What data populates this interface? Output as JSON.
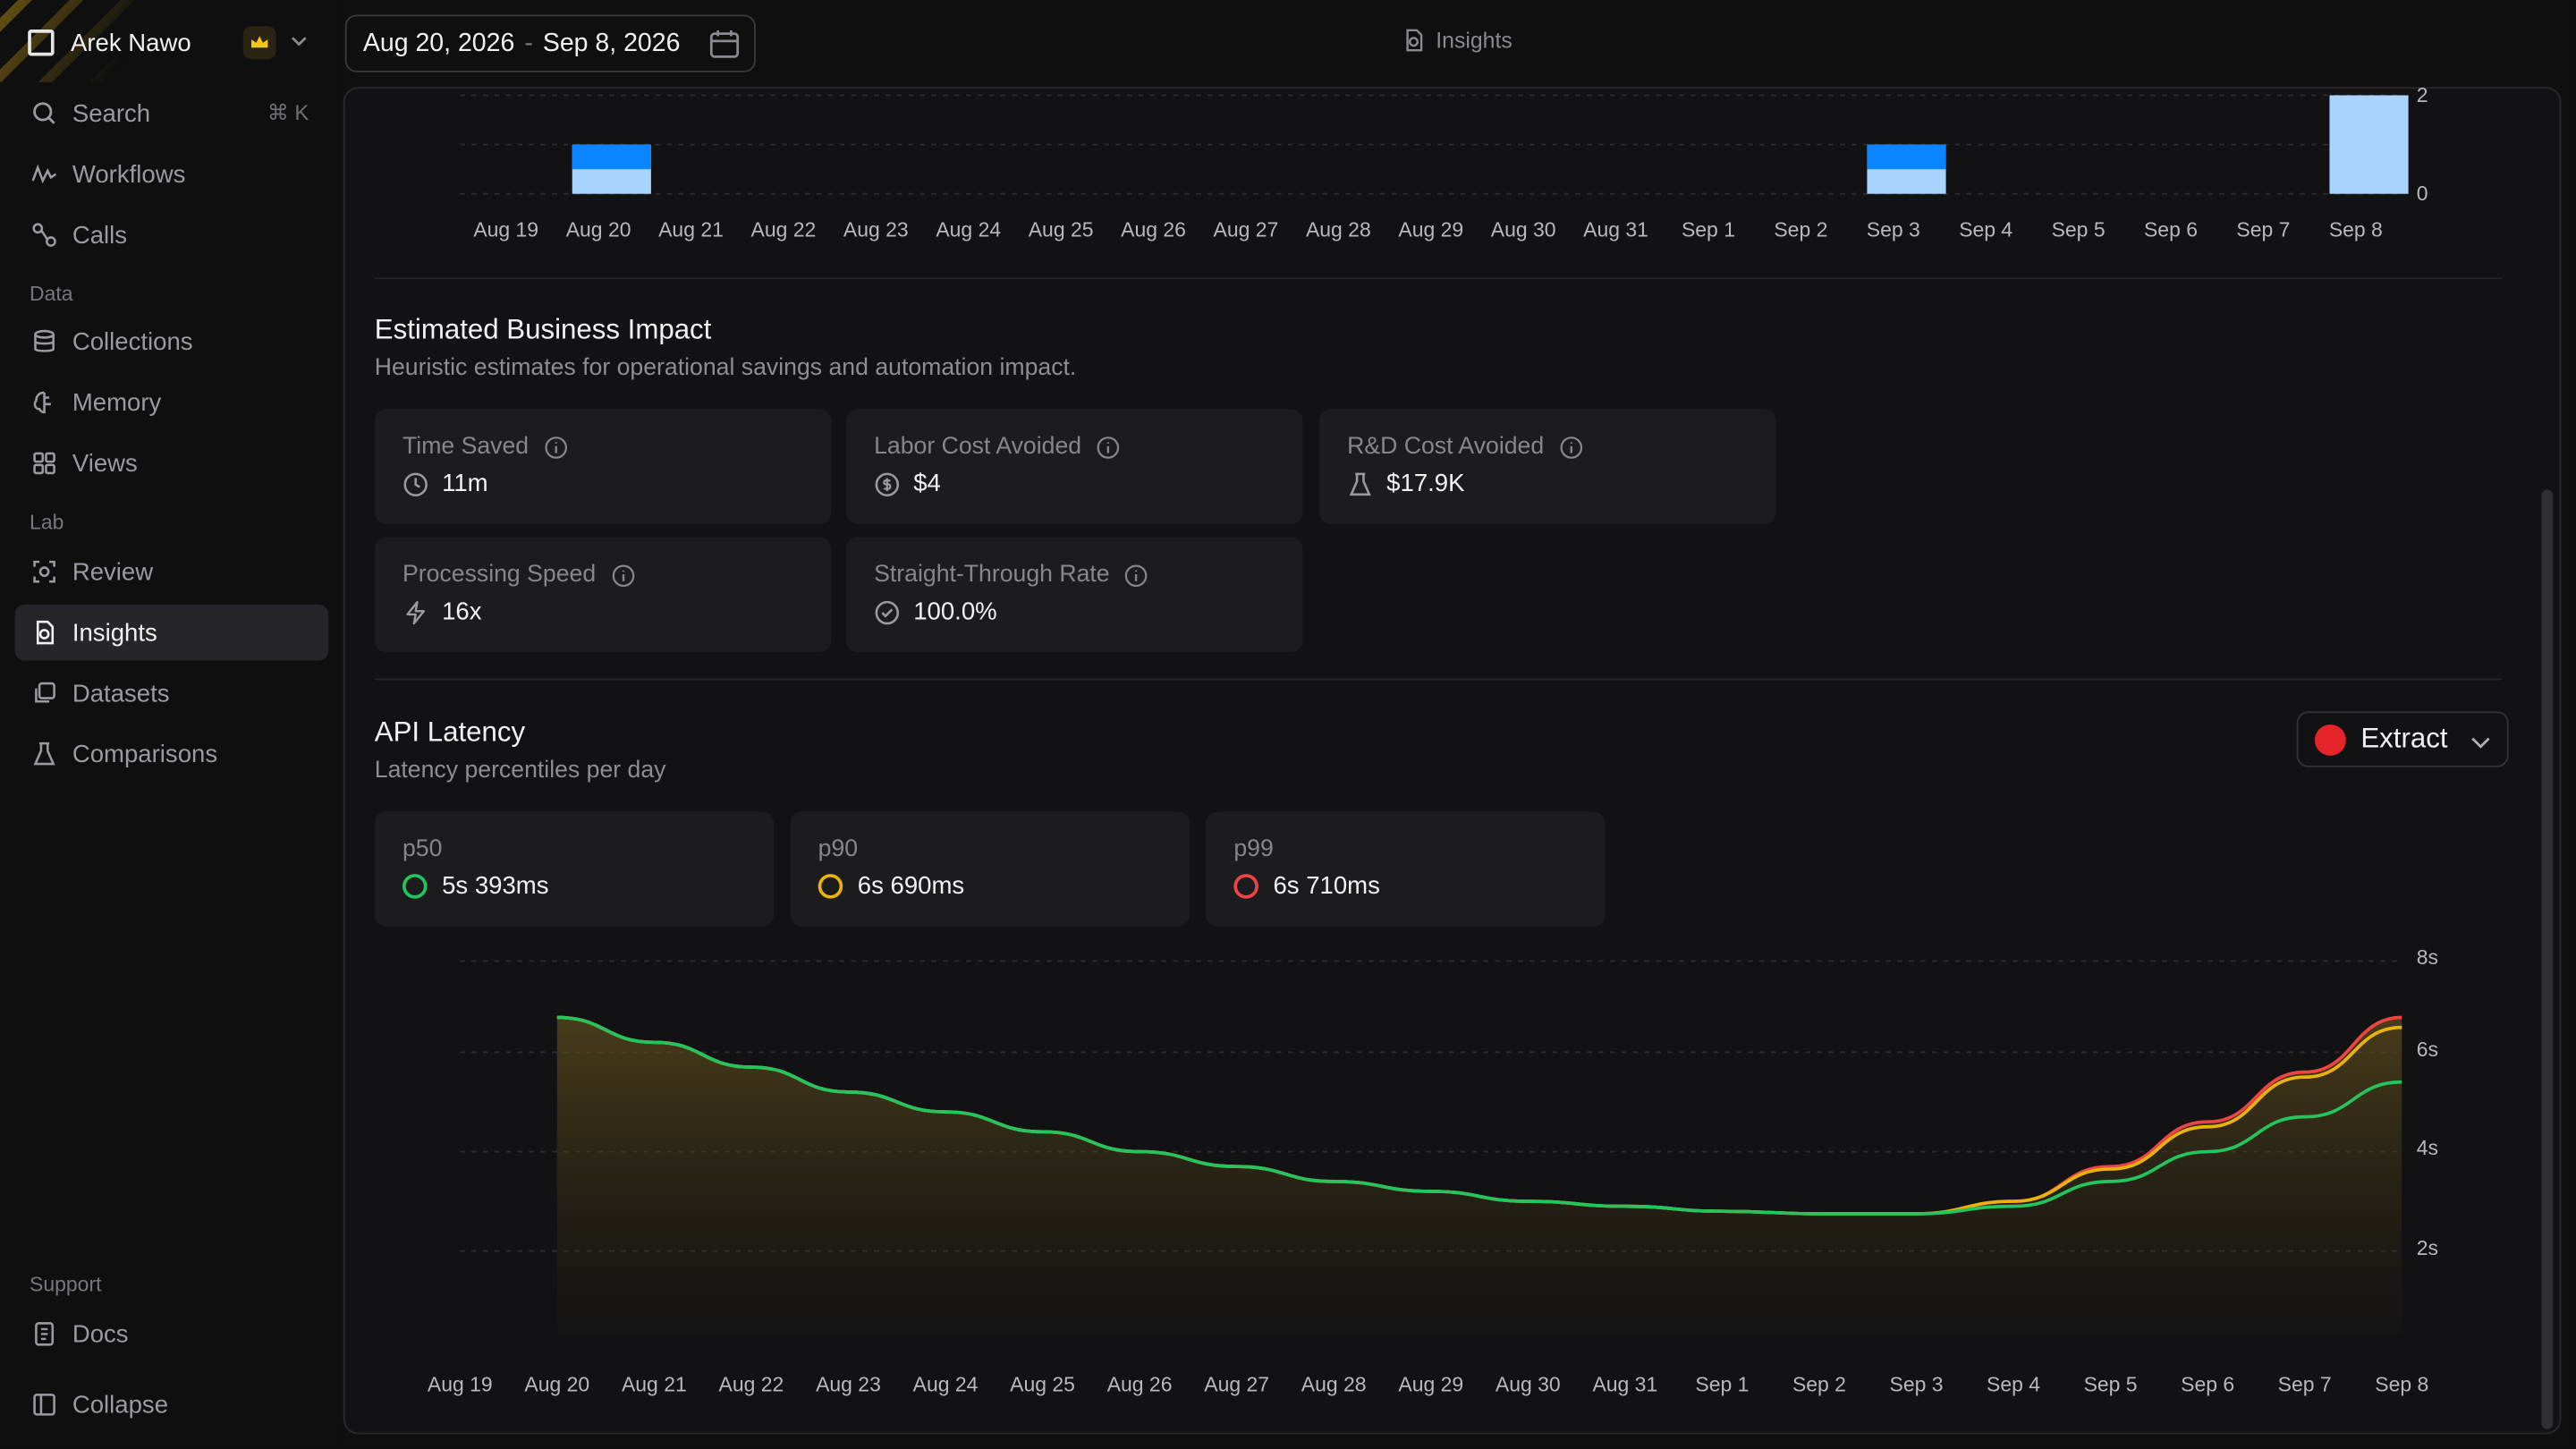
{
  "sidebar": {
    "workspace": "Arek Nawo",
    "items": [
      {
        "label": "Search",
        "shortcut": "⌘ K"
      },
      {
        "label": "Workflows"
      },
      {
        "label": "Calls"
      },
      {
        "label": "Collections"
      },
      {
        "label": "Memory"
      },
      {
        "label": "Views"
      },
      {
        "label": "Review"
      },
      {
        "label": "Insights"
      },
      {
        "label": "Datasets"
      },
      {
        "label": "Comparisons"
      },
      {
        "label": "Docs"
      },
      {
        "label": "Collapse"
      }
    ],
    "sections": {
      "data": "Data",
      "lab": "Lab",
      "support": "Support"
    },
    "active": "Insights"
  },
  "header": {
    "date_start": "Aug 20, 2026",
    "date_sep": "-",
    "date_end": "Sep 8, 2026",
    "breadcrumb": "Insights"
  },
  "business_impact": {
    "title": "Estimated Business Impact",
    "subtitle": "Heuristic estimates for operational savings and automation impact.",
    "cards": [
      {
        "label": "Time Saved",
        "value": "11m",
        "icon": "clock-icon"
      },
      {
        "label": "Labor Cost Avoided",
        "value": "$4",
        "icon": "dollar-icon"
      },
      {
        "label": "R&D Cost Avoided",
        "value": "$17.9K",
        "icon": "flask-icon"
      },
      {
        "label": "Processing Speed",
        "value": "16x",
        "icon": "bolt-icon"
      },
      {
        "label": "Straight-Through Rate",
        "value": "100.0%",
        "icon": "check-circle-icon"
      }
    ]
  },
  "latency": {
    "title": "API Latency",
    "subtitle": "Latency percentiles per day",
    "dropdown": "Extract",
    "dropdown_color": "#e5242a",
    "cards": [
      {
        "label": "p50",
        "value": "5s 393ms",
        "color": "#22c55e"
      },
      {
        "label": "p90",
        "value": "6s 690ms",
        "color": "#eab308"
      },
      {
        "label": "p99",
        "value": "6s 710ms",
        "color": "#ef4444"
      }
    ]
  },
  "chart_data": [
    {
      "type": "bar",
      "categories": [
        "Aug 19",
        "Aug 20",
        "Aug 21",
        "Aug 22",
        "Aug 23",
        "Aug 24",
        "Aug 25",
        "Aug 26",
        "Aug 27",
        "Aug 28",
        "Aug 29",
        "Aug 30",
        "Aug 31",
        "Sep 1",
        "Sep 2",
        "Sep 3",
        "Sep 4",
        "Sep 5",
        "Sep 6",
        "Sep 7",
        "Sep 8"
      ],
      "series": [
        {
          "values": [
            0,
            1,
            0,
            0,
            0,
            0,
            0,
            0,
            0,
            0,
            0,
            0,
            0,
            0,
            0,
            1,
            0,
            0,
            0,
            0,
            2
          ],
          "color": "#a9d4ff"
        },
        {
          "values": [
            0,
            1,
            0,
            0,
            0,
            0,
            0,
            0,
            0,
            0,
            0,
            0,
            0,
            0,
            0,
            1,
            0,
            0,
            0,
            0,
            0
          ],
          "color": "#0a84ff"
        }
      ],
      "stacked": true,
      "yticks": [
        "2",
        "0"
      ],
      "ylim": [
        0,
        2
      ],
      "grid": true
    },
    {
      "type": "line",
      "x": [
        "Aug 19",
        "Aug 20",
        "Aug 21",
        "Aug 22",
        "Aug 23",
        "Aug 24",
        "Aug 25",
        "Aug 26",
        "Aug 27",
        "Aug 28",
        "Aug 29",
        "Aug 30",
        "Aug 31",
        "Sep 1",
        "Sep 2",
        "Sep 3",
        "Sep 4",
        "Sep 5",
        "Sep 6",
        "Sep 7",
        "Sep 8"
      ],
      "series": [
        {
          "name": "p99",
          "color": "#ef4444",
          "values": [
            null,
            6.7,
            6.2,
            5.7,
            5.2,
            4.8,
            4.4,
            4.0,
            3.7,
            3.4,
            3.2,
            3.0,
            2.9,
            2.8,
            2.75,
            2.75,
            3.0,
            3.7,
            4.6,
            5.6,
            6.7
          ]
        },
        {
          "name": "p90",
          "color": "#eab308",
          "values": [
            null,
            6.7,
            6.2,
            5.7,
            5.2,
            4.8,
            4.4,
            4.0,
            3.7,
            3.4,
            3.2,
            3.0,
            2.9,
            2.8,
            2.75,
            2.75,
            3.0,
            3.65,
            4.5,
            5.5,
            6.5
          ]
        },
        {
          "name": "p50",
          "color": "#22c55e",
          "values": [
            null,
            6.7,
            6.2,
            5.7,
            5.2,
            4.8,
            4.4,
            4.0,
            3.7,
            3.4,
            3.2,
            3.0,
            2.9,
            2.8,
            2.75,
            2.75,
            2.9,
            3.4,
            4.0,
            4.7,
            5.4
          ]
        }
      ],
      "yticks": [
        "8s",
        "6s",
        "4s",
        "2s"
      ],
      "ylim": [
        0,
        8
      ],
      "grid": true
    }
  ]
}
